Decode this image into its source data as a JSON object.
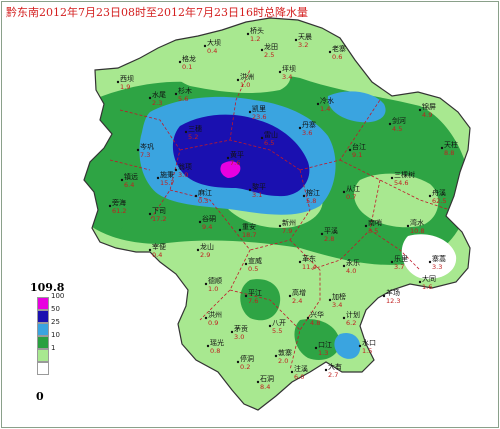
{
  "title": "黔东南2012年7月23日08时至2012年7月23日16时总降水量",
  "legend": {
    "max_label": "109.8",
    "min_label": "0",
    "classes": [
      {
        "label": "100",
        "color": "#e800e0"
      },
      {
        "label": "50",
        "color": "#1a10b0"
      },
      {
        "label": "25",
        "color": "#3aa4e0"
      },
      {
        "label": "10",
        "color": "#2aa040"
      },
      {
        "label": "1",
        "color": "#a8e890"
      },
      {
        "label": "",
        "color": "#ffffff"
      }
    ]
  },
  "colors": {
    "county_border": "#c0182a",
    "outline": "#333333",
    "station_label": "#111111",
    "value_label": "#c02020"
  },
  "stations": [
    {
      "name": "大坝",
      "value": "0.4"
    },
    {
      "name": "天晨",
      "value": "3.2"
    },
    {
      "name": "桥头",
      "value": "1.2"
    },
    {
      "name": "龙田",
      "value": "2.5"
    },
    {
      "name": "格龙",
      "value": "0.1"
    },
    {
      "name": "老寨",
      "value": "0.6"
    },
    {
      "name": "西坝",
      "value": "1.9"
    },
    {
      "name": "水尾",
      "value": "2.3"
    },
    {
      "name": "杉木",
      "value": "5.6"
    },
    {
      "name": "洪洲",
      "value": "1.0"
    },
    {
      "name": "坪坝",
      "value": "3.4"
    },
    {
      "name": "凯里",
      "value": "23.6"
    },
    {
      "name": "三穗",
      "value": "5.2"
    },
    {
      "name": "雷山",
      "value": "6.5"
    },
    {
      "name": "丹寨",
      "value": "3.6"
    },
    {
      "name": "黄平",
      "value": "7.6"
    },
    {
      "name": "台江",
      "value": "9.1"
    },
    {
      "name": "剑河",
      "value": "4.5"
    },
    {
      "name": "锦屏",
      "value": "4.9"
    },
    {
      "name": "天柱",
      "value": "8.8"
    },
    {
      "name": "岑巩",
      "value": "7.3"
    },
    {
      "name": "镇远",
      "value": "6.4"
    },
    {
      "name": "施秉",
      "value": "15.7"
    },
    {
      "name": "麻江",
      "value": "0.3"
    },
    {
      "name": "黎平",
      "value": "3.1"
    },
    {
      "name": "榕江",
      "value": "5.8"
    },
    {
      "name": "从江",
      "value": "0.7"
    },
    {
      "name": "三棵树",
      "value": "54.6"
    },
    {
      "name": "舟溪",
      "value": "62.5"
    },
    {
      "name": "旁海",
      "value": "61.2"
    },
    {
      "name": "下司",
      "value": "17.2"
    },
    {
      "name": "谷硐",
      "value": "9.4"
    },
    {
      "name": "重安",
      "value": "18.7"
    },
    {
      "name": "新州",
      "value": "7.9"
    },
    {
      "name": "平溪",
      "value": "2.8"
    },
    {
      "name": "南哨",
      "value": "3.5"
    },
    {
      "name": "湾水",
      "value": "10.8"
    },
    {
      "name": "龙山",
      "value": "2.9"
    },
    {
      "name": "宣威",
      "value": "0.5"
    },
    {
      "name": "革东",
      "value": "11.4"
    },
    {
      "name": "永乐",
      "value": "4.0"
    },
    {
      "name": "乐里",
      "value": "3.7"
    },
    {
      "name": "寨蒿",
      "value": "3.3"
    },
    {
      "name": "德顺",
      "value": "1.0"
    },
    {
      "name": "平江",
      "value": "7.6"
    },
    {
      "name": "高增",
      "value": "2.4"
    },
    {
      "name": "加榜",
      "value": "3.4"
    },
    {
      "name": "洪州",
      "value": "0.9"
    },
    {
      "name": "茅贡",
      "value": "3.0"
    },
    {
      "name": "八开",
      "value": "5.5"
    },
    {
      "name": "兴华",
      "value": "4.8"
    },
    {
      "name": "计划",
      "value": "6.2"
    },
    {
      "name": "瑶光",
      "value": "0.8"
    },
    {
      "name": "停洞",
      "value": "0.2"
    },
    {
      "name": "敦寨",
      "value": "2.0"
    },
    {
      "name": "口江",
      "value": "1.3"
    },
    {
      "name": "水口",
      "value": "1.5"
    },
    {
      "name": "石洞",
      "value": "8.4"
    },
    {
      "name": "注溪",
      "value": "6.0"
    },
    {
      "name": "大有",
      "value": "2.7"
    },
    {
      "name": "羊场",
      "value": "12.3"
    },
    {
      "name": "大同",
      "value": "1.6"
    },
    {
      "name": "宰便",
      "value": "0.4"
    },
    {
      "name": "翁项",
      "value": "3.0"
    },
    {
      "name": "冷水",
      "value": "1.4"
    }
  ]
}
